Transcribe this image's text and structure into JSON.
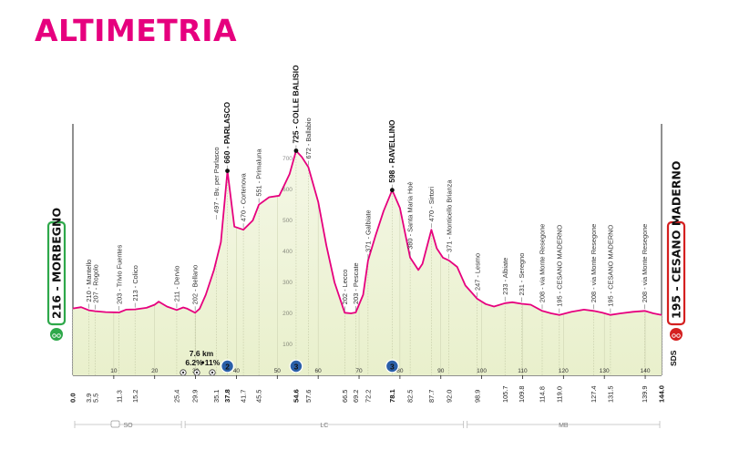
{
  "page": {
    "title": "ALTIMETRIA"
  },
  "colors": {
    "accent": "#e6007e",
    "start": "#2ea84a",
    "finish": "#d42020",
    "climb_fill": "#a9cc6a",
    "base_fill": "#eef3d8"
  },
  "start": {
    "label": "216 - MORBEGNO",
    "elevation": 216,
    "km": "0.0"
  },
  "finish": {
    "label": "195 - CESANO MADERNO",
    "elevation": 195,
    "km": "144.0"
  },
  "sds_label": "SDS",
  "climb_detail": {
    "length": "7.6 km",
    "gradient": "6.2%",
    "max_gradient": "11%"
  },
  "zones": [
    {
      "label": "SO",
      "from": 0,
      "to": 27
    },
    {
      "label": "LC",
      "from": 27,
      "to": 96
    },
    {
      "label": "MB",
      "from": 96,
      "to": 144
    }
  ],
  "chart_data": {
    "type": "area",
    "xlabel": "",
    "ylabel": "",
    "xlim": [
      0,
      144
    ],
    "ylim": [
      0,
      800
    ],
    "x_ticks": [
      10,
      20,
      30,
      40,
      50,
      60,
      70,
      80,
      90,
      100,
      110,
      120,
      130,
      140
    ],
    "y_ticks": [
      100,
      200,
      300,
      400,
      500,
      600,
      700
    ],
    "profile": [
      [
        0,
        216
      ],
      [
        2,
        220
      ],
      [
        3.9,
        210
      ],
      [
        5.5,
        207
      ],
      [
        8,
        204
      ],
      [
        11.3,
        203
      ],
      [
        13,
        212
      ],
      [
        15.2,
        213
      ],
      [
        18,
        218
      ],
      [
        20,
        228
      ],
      [
        21,
        238
      ],
      [
        23,
        222
      ],
      [
        25.4,
        211
      ],
      [
        27,
        219
      ],
      [
        28,
        215
      ],
      [
        29.9,
        202
      ],
      [
        31,
        215
      ],
      [
        32.5,
        260
      ],
      [
        34.5,
        340
      ],
      [
        36.2,
        430
      ],
      [
        37.8,
        660
      ],
      [
        39.5,
        480
      ],
      [
        41.7,
        470
      ],
      [
        44,
        500
      ],
      [
        45.5,
        551
      ],
      [
        48,
        575
      ],
      [
        50.5,
        580
      ],
      [
        53,
        650
      ],
      [
        54.6,
        725
      ],
      [
        56,
        705
      ],
      [
        57.6,
        672
      ],
      [
        60,
        560
      ],
      [
        62,
        420
      ],
      [
        64,
        300
      ],
      [
        66.5,
        202
      ],
      [
        68,
        200
      ],
      [
        69.2,
        203
      ],
      [
        71,
        260
      ],
      [
        72.2,
        371
      ],
      [
        74,
        450
      ],
      [
        76,
        530
      ],
      [
        78.1,
        598
      ],
      [
        80,
        540
      ],
      [
        82.5,
        380
      ],
      [
        84.5,
        340
      ],
      [
        85.5,
        360
      ],
      [
        87.7,
        470
      ],
      [
        89,
        410
      ],
      [
        90.5,
        380
      ],
      [
        92,
        371
      ],
      [
        94,
        350
      ],
      [
        96,
        290
      ],
      [
        98.9,
        247
      ],
      [
        101,
        230
      ],
      [
        103,
        222
      ],
      [
        105.7,
        233
      ],
      [
        107.5,
        236
      ],
      [
        109.8,
        231
      ],
      [
        112,
        228
      ],
      [
        114.8,
        208
      ],
      [
        117,
        200
      ],
      [
        119,
        195
      ],
      [
        122,
        205
      ],
      [
        125,
        212
      ],
      [
        127.4,
        208
      ],
      [
        129.5,
        202
      ],
      [
        131.5,
        195
      ],
      [
        134,
        200
      ],
      [
        137,
        205
      ],
      [
        139.9,
        208
      ],
      [
        142,
        200
      ],
      [
        144,
        195
      ]
    ],
    "shaded_segments": [
      [
        29.9,
        37.8
      ],
      [
        50.5,
        54.6
      ],
      [
        69.2,
        78.1
      ]
    ],
    "labels": [
      {
        "km": 3.9,
        "ele": 210,
        "text": "210 - Mantello"
      },
      {
        "km": 5.5,
        "ele": 207,
        "text": "207 - Rogolo"
      },
      {
        "km": 11.3,
        "ele": 203,
        "text": "203 - Trivio Fuentes"
      },
      {
        "km": 15.2,
        "ele": 213,
        "text": "213 - Colico"
      },
      {
        "km": 25.4,
        "ele": 211,
        "text": "211 - Dervio"
      },
      {
        "km": 29.9,
        "ele": 202,
        "text": "202 - Bellano"
      },
      {
        "km": 35.1,
        "ele": 497,
        "text": "497 - Bv. per Parlasco"
      },
      {
        "km": 37.8,
        "ele": 660,
        "text": "660 - PARLASCO",
        "major": true,
        "gpm": "2"
      },
      {
        "km": 41.7,
        "ele": 470,
        "text": "470 - Cortenova"
      },
      {
        "km": 45.5,
        "ele": 551,
        "text": "551 - Primaluna"
      },
      {
        "km": 54.6,
        "ele": 725,
        "text": "725 - COLLE BALISIO",
        "major": true,
        "gpm": "3"
      },
      {
        "km": 57.6,
        "ele": 672,
        "text": "672 - Ballabio"
      },
      {
        "km": 66.5,
        "ele": 202,
        "text": "202 - Lecco"
      },
      {
        "km": 69.2,
        "ele": 203,
        "text": "203 - Pescate"
      },
      {
        "km": 72.2,
        "ele": 371,
        "text": "371 - Galbiate"
      },
      {
        "km": 78.1,
        "ele": 598,
        "text": "598 - RAVELLINO",
        "major": true,
        "gpm": "3"
      },
      {
        "km": 82.5,
        "ele": 380,
        "text": "380 - Santa Maria Hoè"
      },
      {
        "km": 87.7,
        "ele": 470,
        "text": "470 - Sirtori"
      },
      {
        "km": 92.0,
        "ele": 371,
        "text": "371 - Monticello Brianza"
      },
      {
        "km": 98.9,
        "ele": 247,
        "text": "247 - Lesmo"
      },
      {
        "km": 105.7,
        "ele": 233,
        "text": "233 - Albiate"
      },
      {
        "km": 109.8,
        "ele": 231,
        "text": "231 - Seregno"
      },
      {
        "km": 114.8,
        "ele": 208,
        "text": "208 - via Monte Resegone"
      },
      {
        "km": 119.0,
        "ele": 195,
        "text": "195 - CESANO MADERNO"
      },
      {
        "km": 127.4,
        "ele": 208,
        "text": "208 - via Monte Resegone"
      },
      {
        "km": 131.5,
        "ele": 195,
        "text": "195 - CESANO MADERNO"
      },
      {
        "km": 139.9,
        "ele": 208,
        "text": "208 - via Monte Resegone"
      }
    ],
    "km_markers": [
      {
        "km": 0,
        "text": "0.0",
        "bold": true
      },
      {
        "km": 3.9,
        "text": "3.9"
      },
      {
        "km": 5.5,
        "text": "5.5"
      },
      {
        "km": 11.3,
        "text": "11.3"
      },
      {
        "km": 15.2,
        "text": "15.2"
      },
      {
        "km": 25.4,
        "text": "25.4"
      },
      {
        "km": 29.9,
        "text": "29.9"
      },
      {
        "km": 35.1,
        "text": "35.1"
      },
      {
        "km": 37.8,
        "text": "37.8",
        "bold": true
      },
      {
        "km": 41.7,
        "text": "41.7"
      },
      {
        "km": 45.5,
        "text": "45.5"
      },
      {
        "km": 54.6,
        "text": "54.6",
        "bold": true
      },
      {
        "km": 57.6,
        "text": "57.6"
      },
      {
        "km": 66.5,
        "text": "66.5"
      },
      {
        "km": 69.2,
        "text": "69.2"
      },
      {
        "km": 72.2,
        "text": "72.2"
      },
      {
        "km": 78.1,
        "text": "78.1",
        "bold": true
      },
      {
        "km": 82.5,
        "text": "82.5"
      },
      {
        "km": 87.7,
        "text": "87.7"
      },
      {
        "km": 92.0,
        "text": "92.0"
      },
      {
        "km": 98.9,
        "text": "98.9"
      },
      {
        "km": 105.7,
        "text": "105.7"
      },
      {
        "km": 109.8,
        "text": "109.8"
      },
      {
        "km": 114.8,
        "text": "114.8"
      },
      {
        "km": 119.0,
        "text": "119.0"
      },
      {
        "km": 127.4,
        "text": "127.4"
      },
      {
        "km": 131.5,
        "text": "131.5"
      },
      {
        "km": 139.9,
        "text": "139.9"
      },
      {
        "km": 144,
        "text": "144.0",
        "bold": true
      }
    ]
  }
}
